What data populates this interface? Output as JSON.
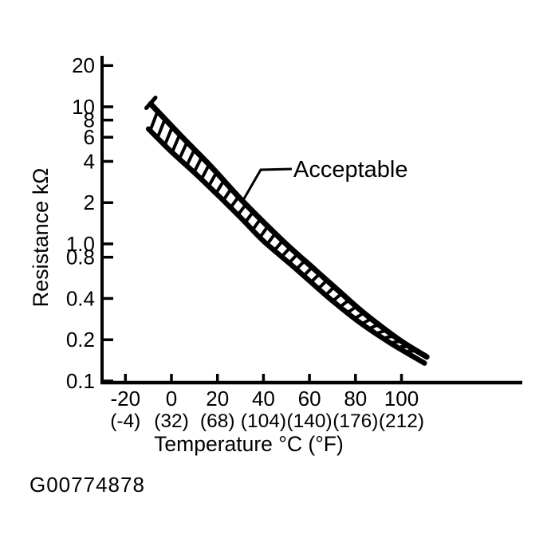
{
  "colors": {
    "ink": "#000000",
    "paper": "#ffffff"
  },
  "figure_code": "G00774878",
  "chart_data": {
    "type": "line",
    "title": "",
    "ylabel": "Resistance kΩ",
    "xlabel": "Temperature °C (°F)",
    "y_scale": "log",
    "ylim": [
      0.1,
      20
    ],
    "xlim": [
      -30,
      152
    ],
    "grid": false,
    "legend_position": "none",
    "annotation": "Acceptable",
    "annotation_meaning": "hatched band between upper and lower limit curves",
    "y_ticks": [
      {
        "label": "20",
        "value": 20
      },
      {
        "label": "10",
        "value": 10
      },
      {
        "label": "8",
        "value": 8
      },
      {
        "label": "6",
        "value": 6
      },
      {
        "label": "4",
        "value": 4
      },
      {
        "label": "2",
        "value": 2
      },
      {
        "label": "1.0",
        "value": 1
      },
      {
        "label": "0.8",
        "value": 0.8
      },
      {
        "label": "0.4",
        "value": 0.4
      },
      {
        "label": "0.2",
        "value": 0.2
      },
      {
        "label": "0.1",
        "value": 0.1
      }
    ],
    "x_ticks": [
      {
        "celsius": "-20",
        "fahrenheit": "(-4)",
        "value": -20
      },
      {
        "celsius": "0",
        "fahrenheit": "(32)",
        "value": 0
      },
      {
        "celsius": "20",
        "fahrenheit": "(68)",
        "value": 20
      },
      {
        "celsius": "40",
        "fahrenheit": "(104)",
        "value": 40
      },
      {
        "celsius": "60",
        "fahrenheit": "(140)",
        "value": 60
      },
      {
        "celsius": "80",
        "fahrenheit": "(176)",
        "value": 80
      },
      {
        "celsius": "100",
        "fahrenheit": "(212)",
        "value": 100
      }
    ],
    "series": [
      {
        "name": "upper-limit",
        "points_c_kohm": [
          [
            -9,
            10.5
          ],
          [
            3.5,
            6.3
          ],
          [
            17,
            3.7
          ],
          [
            31,
            2.05
          ],
          [
            48.5,
            1.05
          ],
          [
            61,
            0.68
          ],
          [
            73,
            0.45
          ],
          [
            83,
            0.32
          ],
          [
            94,
            0.23
          ],
          [
            102,
            0.185
          ],
          [
            111,
            0.15
          ]
        ]
      },
      {
        "name": "lower-limit",
        "points_c_kohm": [
          [
            -10,
            6.9
          ],
          [
            0,
            4.7
          ],
          [
            10.5,
            3.25
          ],
          [
            21,
            2.2
          ],
          [
            31,
            1.5
          ],
          [
            40,
            1.05
          ],
          [
            54,
            0.66
          ],
          [
            68,
            0.41
          ],
          [
            81.5,
            0.27
          ],
          [
            95,
            0.19
          ],
          [
            110,
            0.135
          ]
        ]
      }
    ]
  }
}
